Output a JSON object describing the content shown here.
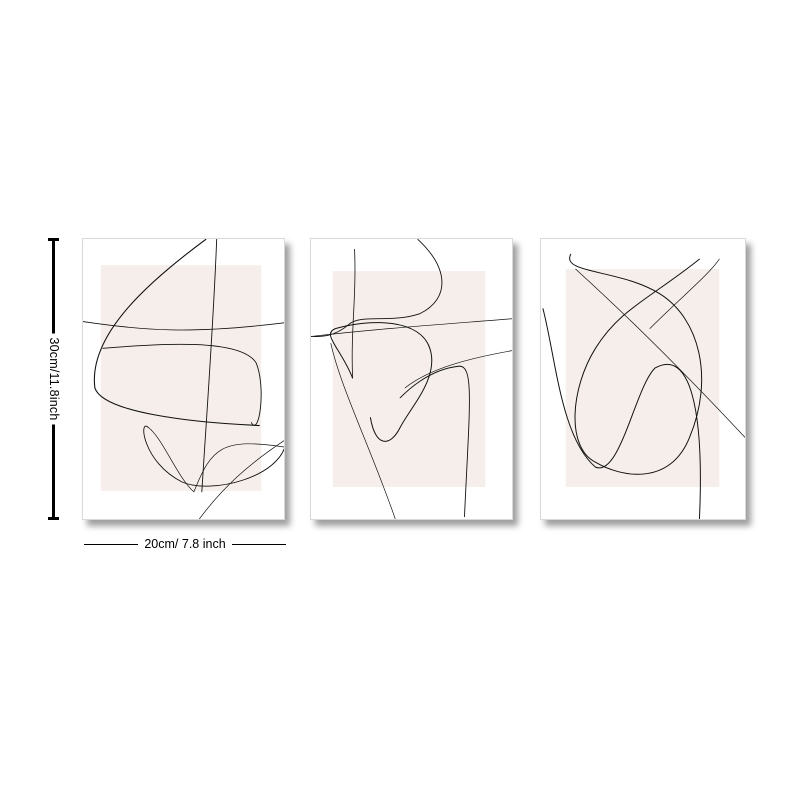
{
  "dimensions": {
    "height_label": "30cm/11.8inch",
    "width_label": "20cm/ 7.8 inch"
  },
  "colors": {
    "background": "#ffffff",
    "frame": "#ffffff",
    "beige_block": "#f6eeea",
    "line_art": "#111111",
    "dimension_marks": "#000000"
  },
  "panels": [
    {
      "name": "abstract-line-art-print-1",
      "subject": "single-line abstract drawing on beige block"
    },
    {
      "name": "abstract-line-art-print-2",
      "subject": "single-line abstract drawing on beige block"
    },
    {
      "name": "abstract-line-art-print-3",
      "subject": "single-line abstract drawing on beige block"
    }
  ]
}
